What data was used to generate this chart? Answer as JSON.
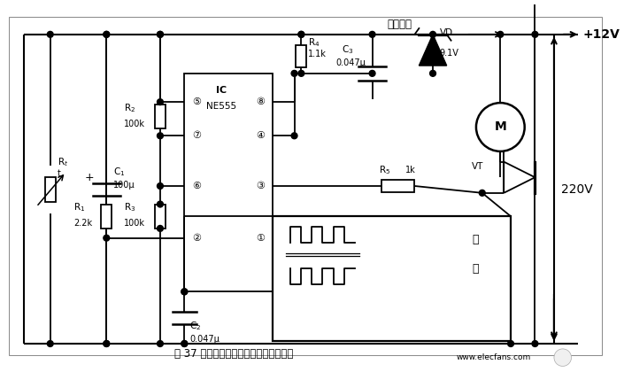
{
  "bg_color": "#ffffff",
  "line_color": "#000000",
  "text_color": "#000000",
  "fig_width": 7.05,
  "fig_height": 4.2,
  "dpi": 100,
  "watermark": "www.elecfans.com",
  "plus12v": "+12V",
  "v220": "220V",
  "fan_motor_label": "风扇电机",
  "caption": "图 37 电风扇自动温控调速器电路原理图",
  "R1_label": "R₁",
  "R1_val": "2.2k",
  "Rt_label": "R₁",
  "Rt_sub": "t",
  "C1_label": "C₁",
  "C1_val": "100μ",
  "R2_label": "R₂",
  "R2_val": "100k",
  "R3_label": "R₃",
  "R3_val": "100k",
  "R4_label": "R₄",
  "R4_val": "1.1k",
  "R5_label": "R₅",
  "R5_val": "1k",
  "C2_label": "C₂",
  "C2_val": "0.047μ",
  "C3_label": "C₃",
  "C3_val": "0.047μ",
  "VD_label": "VD",
  "VD_val": "9.1V",
  "VT_label": "VT",
  "IC_label": "IC",
  "IC_val": "NE555",
  "cold": "冷",
  "hot": "热"
}
